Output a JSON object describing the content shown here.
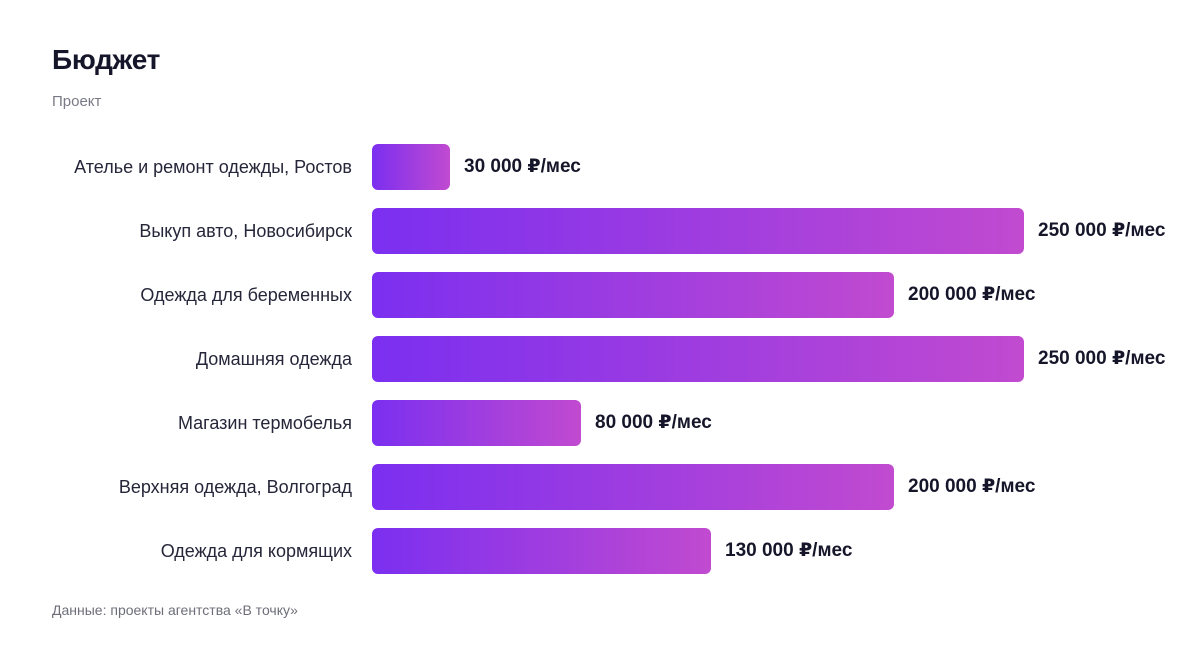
{
  "header": {
    "title": "Бюджет",
    "subtitle": "Проект"
  },
  "footer": {
    "source": "Данные: проекты агентства «В точку»"
  },
  "colors": {
    "bar_start": "#7b2ff0",
    "bar_end": "#c14ad0"
  },
  "chart_data": {
    "type": "bar",
    "orientation": "horizontal",
    "title": "Бюджет",
    "subtitle": "Проект",
    "categories": [
      "Ателье и ремонт одежды, Ростов",
      "Выкуп авто, Новосибирск",
      "Одежда для беременных",
      "Домашняя одежда",
      "Магазин термобелья",
      "Верхняя одежда, Волгоград",
      "Одежда для кормящих"
    ],
    "values": [
      30000,
      250000,
      200000,
      250000,
      80000,
      200000,
      130000
    ],
    "value_labels": [
      "30 000 ₽/мес",
      "250 000 ₽/мес",
      "200 000 ₽/мес",
      "250 000 ₽/мес",
      "80 000 ₽/мес",
      "200 000 ₽/мес",
      "130 000 ₽/мес"
    ],
    "xlim": [
      0,
      250000
    ],
    "grid": false,
    "legend": "none"
  }
}
